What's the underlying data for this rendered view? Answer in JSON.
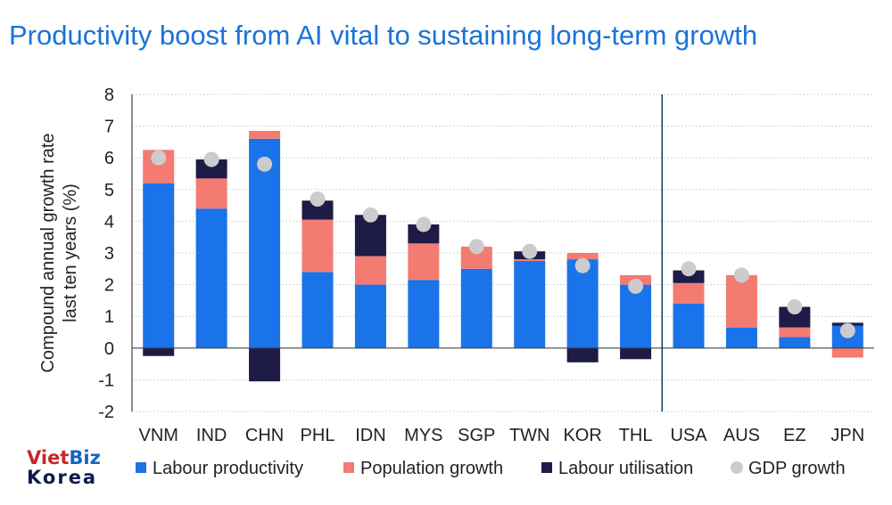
{
  "title": "Productivity boost from AI vital to sustaining long-term growth",
  "logo": {
    "line1_a": "Viet",
    "line1_b": "Biz",
    "line2": "Korea"
  },
  "chart_data": {
    "type": "bar",
    "stacked": true,
    "title": "Productivity boost from AI vital to sustaining long-term growth",
    "ylabel_lines": [
      "Compound annual growth rate",
      "last ten years (%)"
    ],
    "ylim": [
      -2,
      8
    ],
    "yticks": [
      -2,
      -1,
      0,
      1,
      2,
      3,
      4,
      5,
      6,
      7,
      8
    ],
    "grid": true,
    "legend_position": "bottom",
    "divider_after_index": 9,
    "categories": [
      "VNM",
      "IND",
      "CHN",
      "PHL",
      "IDN",
      "MYS",
      "SGP",
      "TWN",
      "KOR",
      "THL",
      "USA",
      "AUS",
      "EZ",
      "JPN"
    ],
    "series": [
      {
        "name": "Labour productivity",
        "color": "#1a73e8",
        "values": [
          5.2,
          4.4,
          6.6,
          2.4,
          2.0,
          2.15,
          2.5,
          2.75,
          2.8,
          2.0,
          1.4,
          0.65,
          0.35,
          0.7
        ]
      },
      {
        "name": "Population growth",
        "color": "#f47b72",
        "values": [
          1.05,
          0.95,
          0.25,
          1.65,
          0.9,
          1.15,
          0.7,
          0.05,
          0.2,
          0.3,
          0.65,
          1.65,
          0.3,
          -0.3
        ]
      },
      {
        "name": "Labour utilisation",
        "color": "#1e1b47",
        "values": [
          -0.25,
          0.6,
          -1.05,
          0.6,
          1.3,
          0.6,
          0.0,
          0.25,
          -0.45,
          -0.35,
          0.4,
          0.0,
          0.65,
          0.1
        ]
      }
    ],
    "gdp_growth": {
      "name": "GDP growth",
      "color": "#cccccc",
      "values": [
        6.0,
        5.95,
        5.8,
        4.7,
        4.2,
        3.9,
        3.2,
        3.05,
        2.6,
        1.95,
        2.5,
        2.3,
        1.3,
        0.55
      ]
    }
  }
}
